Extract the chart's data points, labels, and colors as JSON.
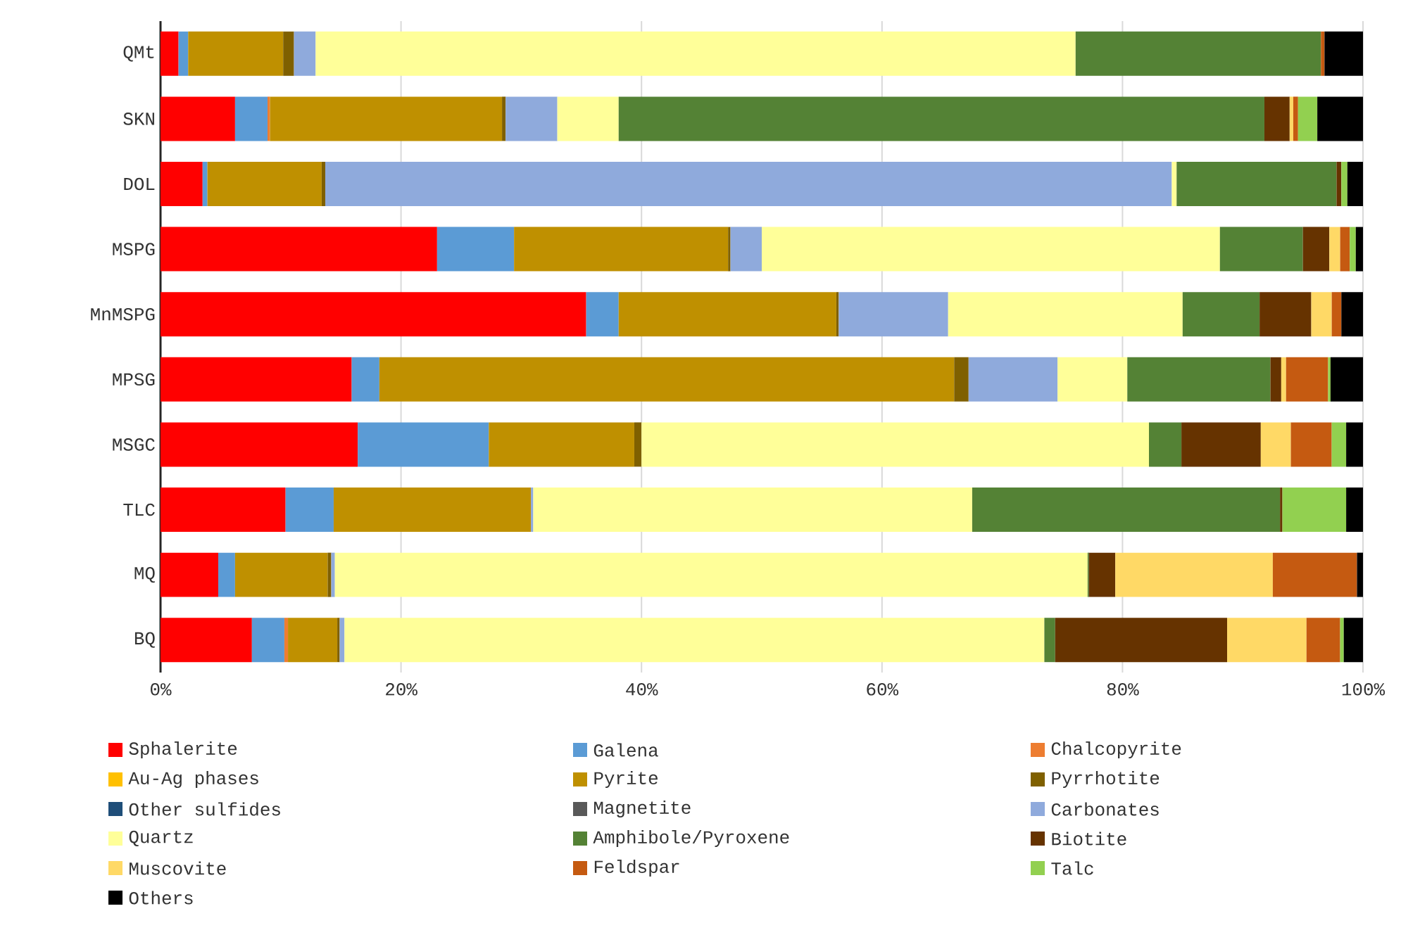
{
  "chart_data": {
    "type": "bar",
    "orientation": "horizontal",
    "stacked": true,
    "categories": [
      "QMt",
      "SKN",
      "DOL",
      "MSPG",
      "MnMSPG",
      "MPSG",
      "MSGC",
      "TLC",
      "MQ",
      "BQ"
    ],
    "xlim": [
      0,
      100
    ],
    "xticks": [
      {
        "value": 0,
        "label": "0%"
      },
      {
        "value": 20,
        "label": "20%"
      },
      {
        "value": 40,
        "label": "40%"
      },
      {
        "value": 60,
        "label": "60%"
      },
      {
        "value": 80,
        "label": "80%"
      },
      {
        "value": 100,
        "label": "100%"
      }
    ],
    "grid": "x",
    "legend": "bottom",
    "series": [
      {
        "name": "Sphalerite",
        "color": "#ff0000",
        "values": [
          1.5,
          6.2,
          3.5,
          23.0,
          35.4,
          15.9,
          16.4,
          10.4,
          4.8,
          7.6
        ]
      },
      {
        "name": "Galena",
        "color": "#5b9bd5",
        "values": [
          0.8,
          2.7,
          0.4,
          6.4,
          2.7,
          2.3,
          10.9,
          4.0,
          1.4,
          2.7
        ]
      },
      {
        "name": "Chalcopyrite",
        "color": "#ed7d31",
        "values": [
          null,
          0.2,
          null,
          null,
          null,
          null,
          null,
          null,
          null,
          0.3
        ]
      },
      {
        "name": "Au-Ag phases",
        "color": "#ffc000",
        "values": [
          null,
          null,
          null,
          null,
          null,
          null,
          null,
          null,
          null,
          null
        ]
      },
      {
        "name": "Pyrite",
        "color": "#bf9000",
        "values": [
          7.9,
          19.3,
          9.5,
          17.8,
          18.1,
          47.8,
          12.1,
          16.4,
          7.7,
          4.1
        ]
      },
      {
        "name": "Pyrrhotite",
        "color": "#7f6000",
        "values": [
          0.9,
          0.3,
          0.3,
          0.2,
          0.2,
          1.2,
          0.6,
          null,
          0.3,
          0.2
        ]
      },
      {
        "name": "Other sulfides",
        "color": "#1f4e79",
        "values": [
          null,
          null,
          null,
          null,
          null,
          null,
          null,
          null,
          null,
          null
        ]
      },
      {
        "name": "Magnetite",
        "color": "#595959",
        "values": [
          null,
          null,
          null,
          null,
          null,
          null,
          null,
          null,
          null,
          null
        ]
      },
      {
        "name": "Carbonates",
        "color": "#8faadc",
        "values": [
          1.8,
          4.3,
          70.4,
          2.6,
          9.1,
          7.4,
          null,
          0.2,
          0.3,
          0.4
        ]
      },
      {
        "name": "Quartz",
        "color": "#ffff99",
        "values": [
          63.2,
          5.1,
          0.4,
          38.1,
          19.5,
          5.8,
          42.2,
          36.5,
          62.6,
          58.2
        ]
      },
      {
        "name": "Amphibole/Pyroxene",
        "color": "#548235",
        "values": [
          20.4,
          53.7,
          13.3,
          6.9,
          6.4,
          11.9,
          2.7,
          25.6,
          0.1,
          0.9
        ]
      },
      {
        "name": "Biotite",
        "color": "#663300",
        "values": [
          null,
          2.1,
          0.4,
          2.2,
          4.3,
          0.9,
          6.6,
          0.2,
          2.2,
          14.3
        ]
      },
      {
        "name": "Muscovite",
        "color": "#ffd966",
        "values": [
          null,
          0.3,
          null,
          0.9,
          1.7,
          0.4,
          2.5,
          null,
          13.1,
          6.6
        ]
      },
      {
        "name": "Feldspar",
        "color": "#c55a11",
        "values": [
          0.3,
          0.4,
          null,
          0.8,
          0.8,
          3.5,
          3.4,
          null,
          7.0,
          2.8
        ]
      },
      {
        "name": "Talc",
        "color": "#92d050",
        "values": [
          null,
          1.6,
          0.5,
          0.5,
          null,
          0.2,
          1.2,
          5.3,
          null,
          0.3
        ]
      },
      {
        "name": "Others",
        "color": "#000000",
        "values": [
          3.2,
          3.8,
          1.3,
          0.6,
          1.8,
          2.7,
          1.4,
          1.4,
          0.5,
          1.6
        ]
      }
    ]
  }
}
